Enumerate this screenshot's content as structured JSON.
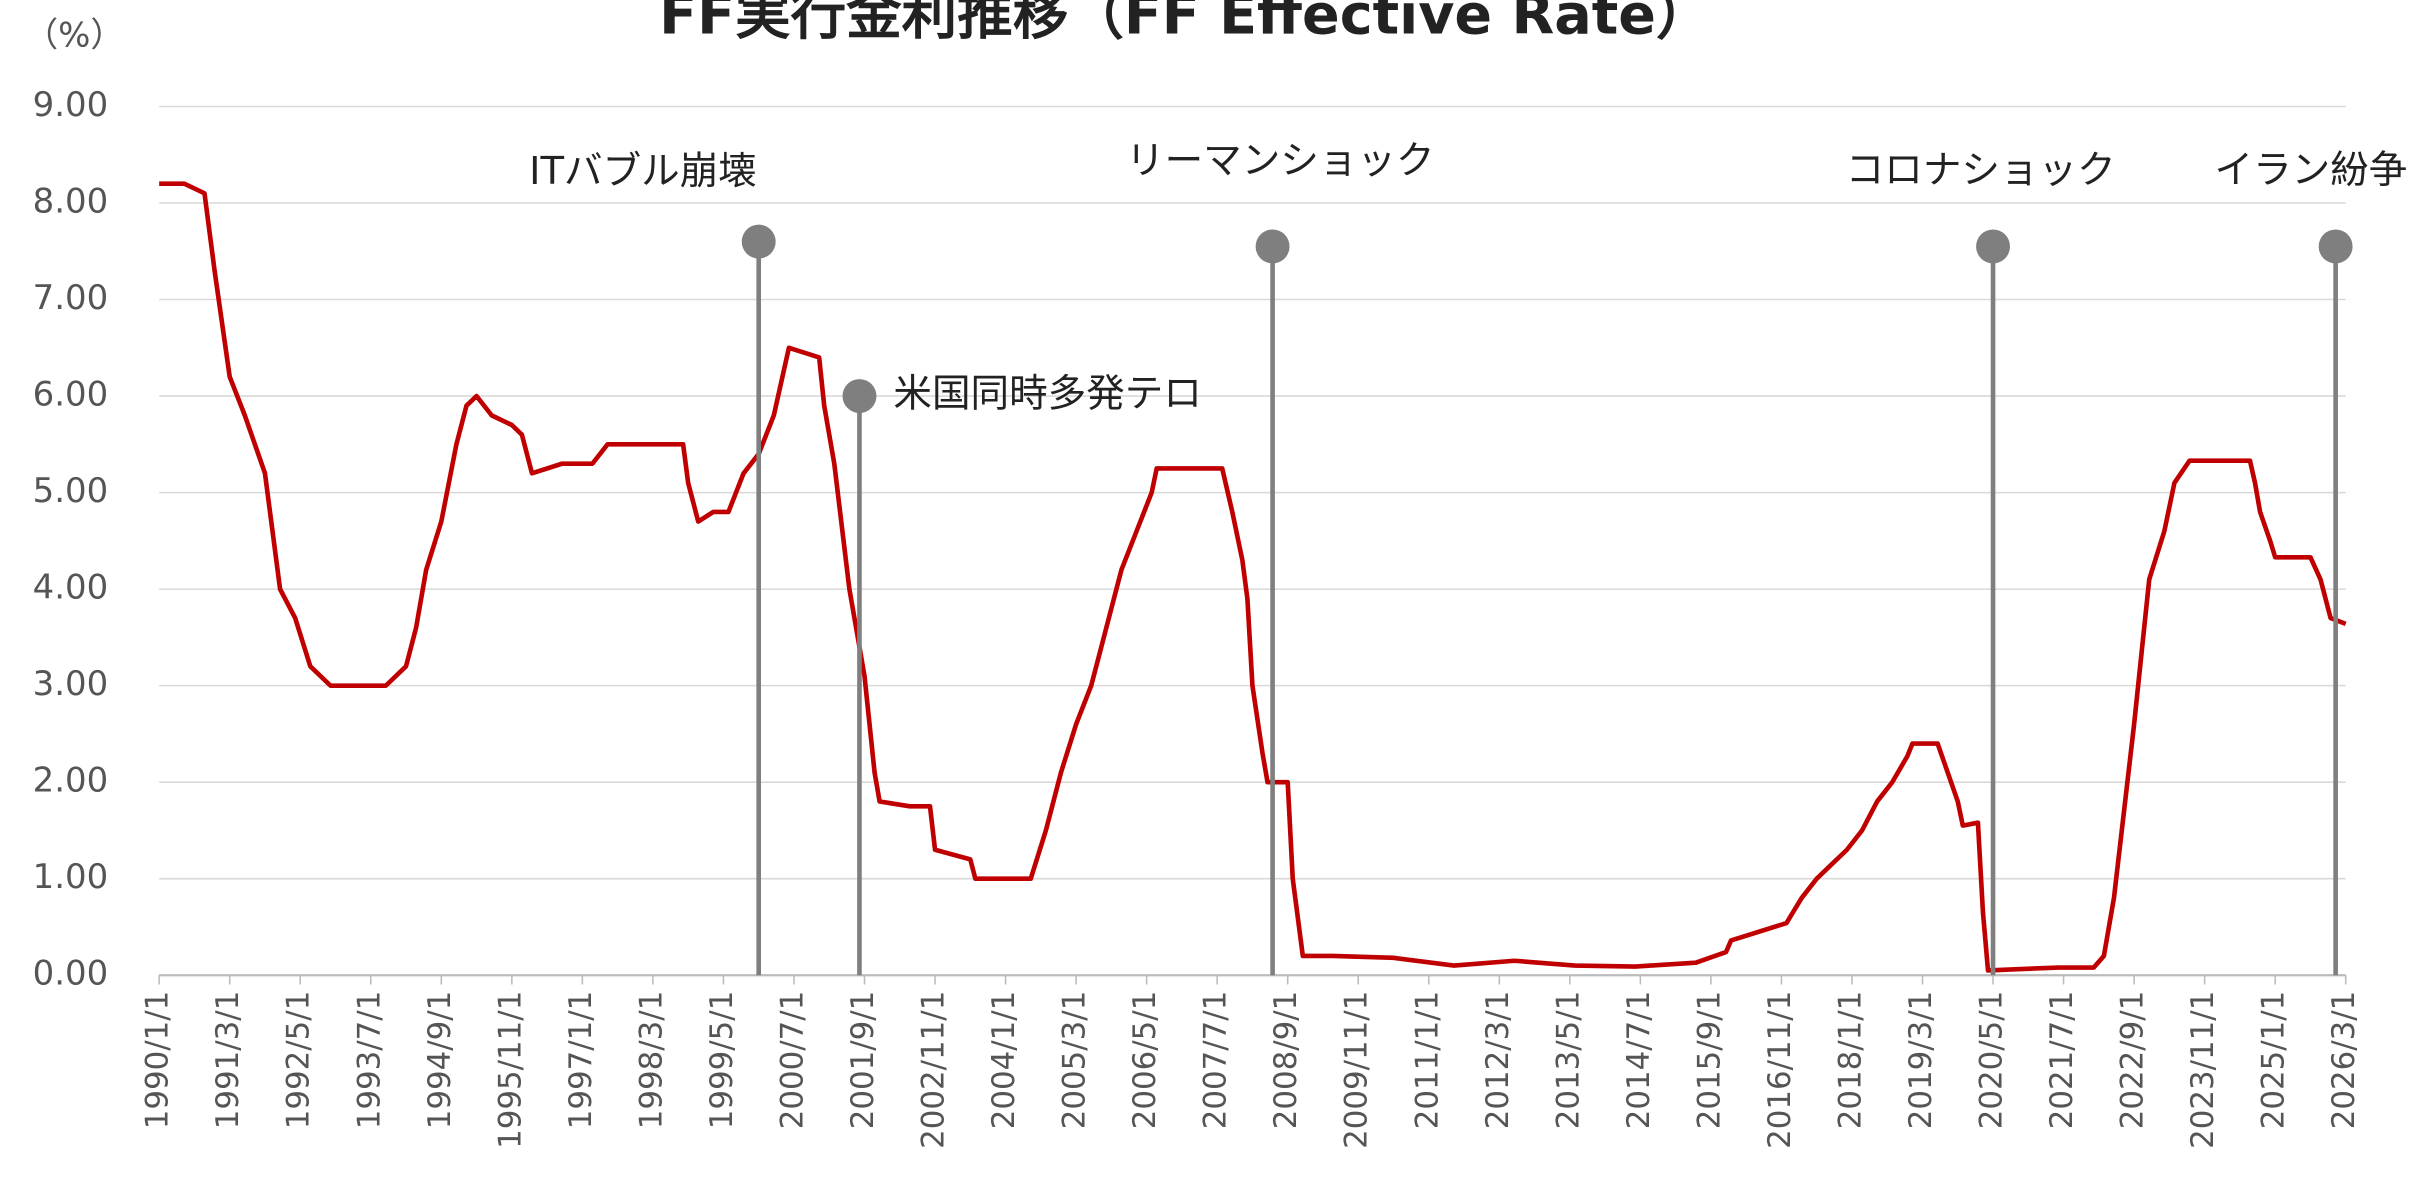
{
  "chart_data": {
    "type": "line",
    "title": "FF実行金利推移（FF Effective Rate）",
    "y_label": "（%）",
    "x": [
      "1990/1/1",
      "1990/6/1",
      "1990/10/1",
      "1990/12/1",
      "1991/3/1",
      "1991/6/1",
      "1991/10/1",
      "1992/1/1",
      "1992/4/1",
      "1992/7/1",
      "1992/11/1",
      "1993/3/1",
      "1993/10/1",
      "1994/2/1",
      "1994/4/1",
      "1994/6/1",
      "1994/9/1",
      "1994/12/1",
      "1995/2/1",
      "1995/4/1",
      "1995/7/1",
      "1995/11/1",
      "1996/1/1",
      "1996/3/1",
      "1996/9/1",
      "1997/3/1",
      "1997/6/1",
      "1998/3/1",
      "1998/9/1",
      "1998/10/1",
      "1998/12/1",
      "1999/3/1",
      "1999/6/1",
      "1999/9/1",
      "1999/12/1",
      "2000/3/1",
      "2000/6/1",
      "2000/12/1",
      "2001/1/1",
      "2001/3/1",
      "2001/6/1",
      "2001/9/1",
      "2001/11/1",
      "2001/12/1",
      "2002/6/1",
      "2002/10/1",
      "2002/11/1",
      "2003/6/1",
      "2003/7/1",
      "2004/6/1",
      "2004/9/1",
      "2004/12/1",
      "2005/3/1",
      "2005/6/1",
      "2005/9/1",
      "2005/12/1",
      "2006/3/1",
      "2006/6/1",
      "2006/7/1",
      "2007/8/1",
      "2007/10/1",
      "2007/12/1",
      "2008/1/1",
      "2008/2/1",
      "2008/4/1",
      "2008/5/1",
      "2008/9/1",
      "2008/10/1",
      "2008/12/1",
      "2009/6/1",
      "2010/6/1",
      "2011/6/1",
      "2012/6/1",
      "2013/6/1",
      "2014/6/1",
      "2015/6/1",
      "2015/12/1",
      "2016/1/1",
      "2016/12/1",
      "2017/3/1",
      "2017/6/1",
      "2017/9/1",
      "2017/12/1",
      "2018/3/1",
      "2018/6/1",
      "2018/9/1",
      "2018/12/1",
      "2019/1/1",
      "2019/6/1",
      "2019/8/1",
      "2019/10/1",
      "2019/11/1",
      "2020/2/1",
      "2020/3/1",
      "2020/4/1",
      "2021/6/1",
      "2022/1/1",
      "2022/3/1",
      "2022/5/1",
      "2022/7/1",
      "2022/9/1",
      "2022/10/1",
      "2022/12/1",
      "2023/3/1",
      "2023/5/1",
      "2023/8/1",
      "2024/8/1",
      "2024/9/1",
      "2024/10/1",
      "2024/12/1",
      "2025/1/1",
      "2025/8/1",
      "2025/10/1",
      "2025/12/1",
      "2026/3/1"
    ],
    "series": [
      {
        "name": "FF Effective Rate",
        "color": "#c00000",
        "values": [
          8.2,
          8.2,
          8.1,
          7.3,
          6.2,
          5.8,
          5.2,
          4.0,
          3.7,
          3.2,
          3.0,
          3.0,
          3.0,
          3.2,
          3.6,
          4.2,
          4.7,
          5.5,
          5.9,
          6.0,
          5.8,
          5.7,
          5.6,
          5.2,
          5.3,
          5.3,
          5.5,
          5.5,
          5.5,
          5.1,
          4.7,
          4.8,
          4.8,
          5.2,
          5.4,
          5.8,
          6.5,
          6.4,
          5.9,
          5.3,
          4.0,
          3.1,
          2.1,
          1.8,
          1.75,
          1.75,
          1.3,
          1.2,
          1.0,
          1.0,
          1.5,
          2.1,
          2.6,
          3.0,
          3.6,
          4.2,
          4.6,
          5.0,
          5.25,
          5.25,
          4.8,
          4.3,
          3.9,
          3.0,
          2.3,
          2.0,
          2.0,
          1.0,
          0.2,
          0.2,
          0.18,
          0.1,
          0.15,
          0.1,
          0.09,
          0.13,
          0.24,
          0.36,
          0.54,
          0.8,
          1.0,
          1.15,
          1.3,
          1.5,
          1.8,
          2.0,
          2.27,
          2.4,
          2.4,
          2.1,
          1.8,
          1.55,
          1.58,
          0.65,
          0.05,
          0.08,
          0.08,
          0.2,
          0.8,
          1.7,
          2.6,
          3.1,
          4.1,
          4.6,
          5.1,
          5.33,
          5.33,
          5.1,
          4.8,
          4.5,
          4.33,
          4.33,
          4.1,
          3.7,
          3.64
        ]
      }
    ],
    "xlim": [
      "1990/1/1",
      "2026/3/1"
    ],
    "xticks": [
      "1990/1/1",
      "1991/3/1",
      "1992/5/1",
      "1993/7/1",
      "1994/9/1",
      "1995/11/1",
      "1997/1/1",
      "1998/3/1",
      "1999/5/1",
      "2000/7/1",
      "2001/9/1",
      "2002/11/1",
      "2004/1/1",
      "2005/3/1",
      "2006/5/1",
      "2007/7/1",
      "2008/9/1",
      "2009/11/1",
      "2011/1/1",
      "2012/3/1",
      "2013/5/1",
      "2014/7/1",
      "2015/9/1",
      "2016/11/1",
      "2018/1/1",
      "2019/3/1",
      "2020/5/1",
      "2021/7/1",
      "2022/9/1",
      "2023/11/1",
      "2025/1/1",
      "2026/3/1"
    ],
    "ylim": [
      0,
      9
    ],
    "yticks": [
      {
        "value": 0,
        "label": "0.00"
      },
      {
        "value": 1,
        "label": "1.00"
      },
      {
        "value": 2,
        "label": "2.00"
      },
      {
        "value": 3,
        "label": "3.00"
      },
      {
        "value": 4,
        "label": "4.00"
      },
      {
        "value": 5,
        "label": "5.00"
      },
      {
        "value": 6,
        "label": "6.00"
      },
      {
        "value": 7,
        "label": "7.00"
      },
      {
        "value": 8,
        "label": "8.00"
      },
      {
        "value": 9,
        "label": "9.00"
      }
    ],
    "grid": true,
    "annotations": [
      {
        "text": "ITバブル崩壊",
        "x": "1999/12/1",
        "y": 7.6
      },
      {
        "text": "米国同時多発テロ",
        "x": "2001/8/1",
        "y": 6.0
      },
      {
        "text": "リーマンショック",
        "x": "2008/6/1",
        "y": 7.55
      },
      {
        "text": "コロナショック",
        "x": "2020/5/1",
        "y": 7.55
      },
      {
        "text": "イラン紛争",
        "x": "2026/1/1",
        "y": 7.55
      }
    ]
  }
}
